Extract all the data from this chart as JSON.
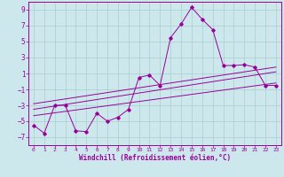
{
  "title": "",
  "xlabel": "Windchill (Refroidissement éolien,°C)",
  "ylabel": "",
  "bg_color": "#cce8ec",
  "grid_color": "#aacccc",
  "line_color": "#990099",
  "xlim": [
    -0.5,
    23.5
  ],
  "ylim": [
    -8,
    10
  ],
  "xticks": [
    0,
    1,
    2,
    3,
    4,
    5,
    6,
    7,
    8,
    9,
    10,
    11,
    12,
    13,
    14,
    15,
    16,
    17,
    18,
    19,
    20,
    21,
    22,
    23
  ],
  "yticks": [
    -7,
    -5,
    -3,
    -1,
    1,
    3,
    5,
    7,
    9
  ],
  "main_x": [
    0,
    1,
    2,
    3,
    4,
    5,
    6,
    7,
    8,
    9,
    10,
    11,
    12,
    13,
    14,
    15,
    16,
    17,
    18,
    19,
    20,
    21,
    22,
    23
  ],
  "main_y": [
    -5.5,
    -6.5,
    -3.0,
    -3.0,
    -6.2,
    -6.3,
    -4.0,
    -5.0,
    -4.5,
    -3.5,
    0.5,
    0.8,
    -0.5,
    5.5,
    7.2,
    9.3,
    7.8,
    6.5,
    2.0,
    2.0,
    2.1,
    1.8,
    -0.5,
    -0.5
  ],
  "trend1_x": [
    0,
    23
  ],
  "trend1_y": [
    -3.5,
    1.2
  ],
  "trend2_x": [
    0,
    23
  ],
  "trend2_y": [
    -2.8,
    1.8
  ],
  "trend3_x": [
    0,
    23
  ],
  "trend3_y": [
    -4.3,
    -0.2
  ]
}
